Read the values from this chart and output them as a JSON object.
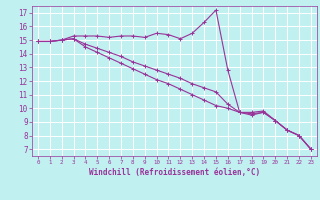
{
  "xlabel": "Windchill (Refroidissement éolien,°C)",
  "xlim": [
    -0.5,
    23.5
  ],
  "ylim": [
    6.5,
    17.5
  ],
  "xticks": [
    0,
    1,
    2,
    3,
    4,
    5,
    6,
    7,
    8,
    9,
    10,
    11,
    12,
    13,
    14,
    15,
    16,
    17,
    18,
    19,
    20,
    21,
    22,
    23
  ],
  "yticks": [
    7,
    8,
    9,
    10,
    11,
    12,
    13,
    14,
    15,
    16,
    17
  ],
  "bg_color": "#c0f0f0",
  "line_color": "#993399",
  "grid_color": "#ffffff",
  "line1_x": [
    0,
    1,
    2,
    3,
    4,
    5,
    6,
    7,
    8,
    9,
    10,
    11,
    12,
    13,
    14,
    15,
    16,
    17,
    18,
    19,
    20,
    21,
    22,
    23
  ],
  "line1_y": [
    14.9,
    14.9,
    15.0,
    15.3,
    15.3,
    15.3,
    15.2,
    15.3,
    15.3,
    15.2,
    15.5,
    15.4,
    15.1,
    15.5,
    16.3,
    17.2,
    12.8,
    9.7,
    9.7,
    9.8,
    9.1,
    8.4,
    8.0,
    7.0
  ],
  "line2_x": [
    0,
    1,
    2,
    3,
    4,
    5,
    6,
    7,
    8,
    9,
    10,
    11,
    12,
    13,
    14,
    15,
    16,
    17,
    18,
    19,
    20,
    21,
    22,
    23
  ],
  "line2_y": [
    14.9,
    14.9,
    15.0,
    15.1,
    14.7,
    14.4,
    14.1,
    13.8,
    13.4,
    13.1,
    12.8,
    12.5,
    12.2,
    11.8,
    11.5,
    11.2,
    10.3,
    9.7,
    9.6,
    9.7,
    9.1,
    8.4,
    8.0,
    7.0
  ],
  "line3_x": [
    0,
    1,
    2,
    3,
    4,
    5,
    6,
    7,
    8,
    9,
    10,
    11,
    12,
    13,
    14,
    15,
    16,
    17,
    18,
    19,
    20,
    21,
    22,
    23
  ],
  "line3_y": [
    14.9,
    14.9,
    15.0,
    15.1,
    14.5,
    14.1,
    13.7,
    13.3,
    12.9,
    12.5,
    12.1,
    11.8,
    11.4,
    11.0,
    10.6,
    10.2,
    10.0,
    9.7,
    9.5,
    9.7,
    9.1,
    8.4,
    8.0,
    7.0
  ]
}
